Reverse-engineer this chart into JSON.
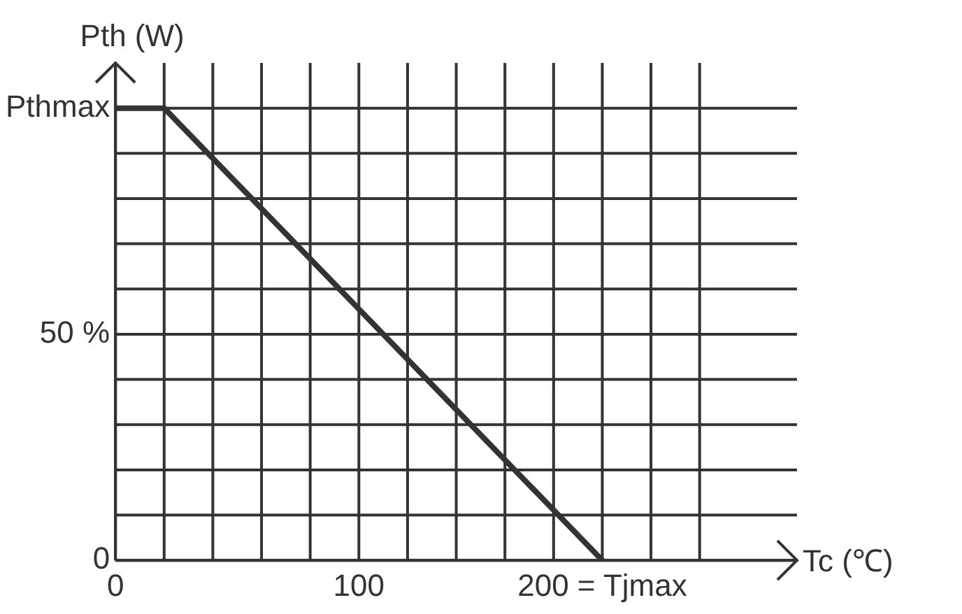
{
  "chart_data": {
    "type": "line",
    "xlabel": "Tc (℃)",
    "ylabel": "Pth (W)",
    "x": [
      0,
      20,
      200
    ],
    "series": [
      {
        "color": "#333333",
        "values": [
          100,
          100,
          0
        ]
      }
    ],
    "xlim": [
      0,
      280
    ],
    "ylim": [
      0,
      110
    ],
    "xticks": [
      0,
      {
        "value": 20,
        "label": null
      },
      {
        "value": 40,
        "label": null
      },
      {
        "value": 60,
        "label": null
      },
      {
        "value": 80,
        "label": null
      },
      100,
      {
        "value": 120,
        "label": null
      },
      {
        "value": 140,
        "label": null
      },
      {
        "value": 160,
        "label": null
      },
      {
        "value": 180,
        "label": null
      },
      {
        "value": 200,
        "label": "200 = Tjmax"
      },
      {
        "value": 220,
        "label": null
      },
      {
        "value": 240,
        "label": null
      }
    ],
    "yticks": [
      0,
      {
        "value": 10,
        "label": null
      },
      {
        "value": 20,
        "label": null
      },
      {
        "value": 30,
        "label": null
      },
      {
        "value": 40,
        "label": null
      },
      {
        "value": 50,
        "label": "50 %"
      },
      {
        "value": 60,
        "label": null
      },
      {
        "value": 70,
        "label": null
      },
      {
        "value": 80,
        "label": null
      },
      {
        "value": 90,
        "label": null
      },
      {
        "value": 100,
        "label": "Pthmax"
      }
    ],
    "grid": true,
    "marker": "none",
    "line_style": "solid",
    "legend": false
  }
}
